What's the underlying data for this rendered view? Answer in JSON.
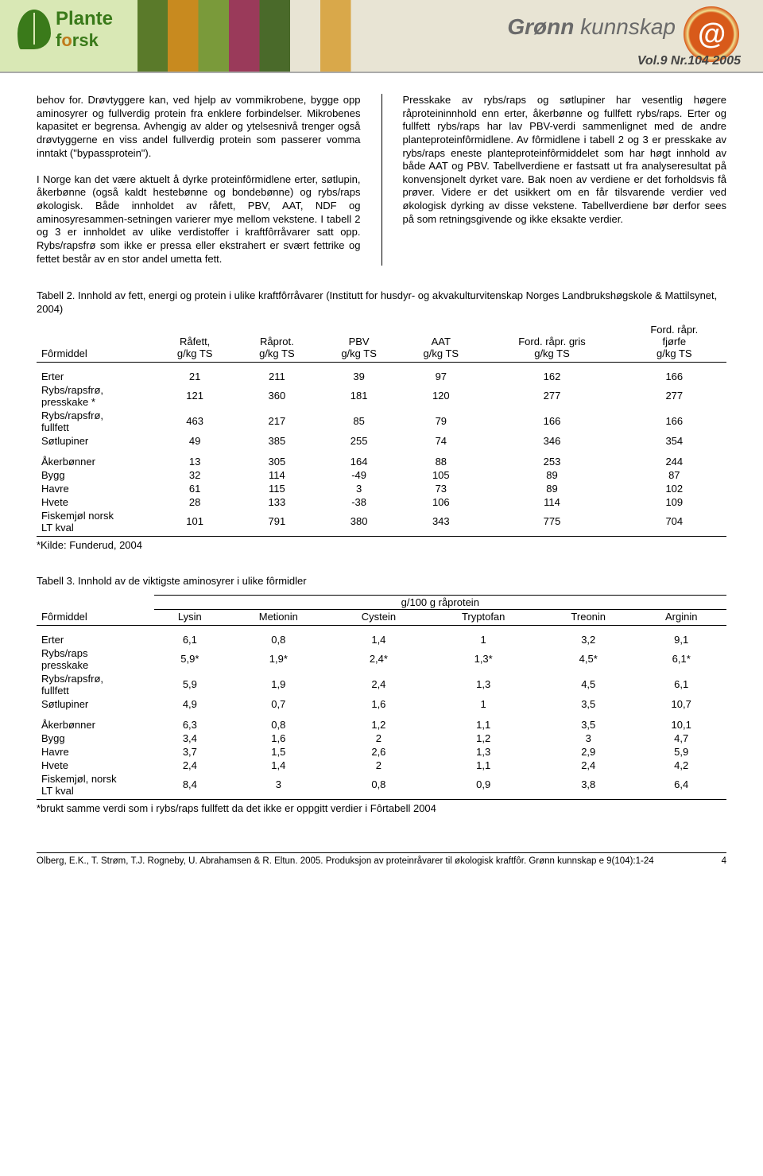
{
  "banner": {
    "brand_line1": "Plante",
    "brand_line2_a": "f",
    "brand_line2_b": "o",
    "brand_line2_c": "rsk",
    "title_a": "Grønn ",
    "title_b": "kunnskap",
    "at": "@",
    "volnr": "Vol.9 Nr.104 2005"
  },
  "body": {
    "left": "behov for. Drøvtyggere kan, ved hjelp av vommikrobene, bygge opp aminosyrer og fullverdig protein fra enklere forbindelser. Mikrobenes kapasitet er begrensa. Avhengig av alder og ytelsesnivå trenger også drøvtyggerne en viss andel fullverdig protein som passerer vomma inntakt (\"bypassprotein\").\n\nI Norge kan det være aktuelt å dyrke proteinfôrmidlene erter, søtlupin, åkerbønne (også kaldt hestebønne og bondebønne) og rybs/raps økologisk. Både innholdet av råfett, PBV, AAT, NDF og aminosyresammen-setningen varierer mye mellom vekstene. I tabell 2 og 3 er innholdet av ulike verdistoffer i kraftfôrråvarer satt opp. Rybs/rapsfrø som ikke er pressa eller ekstrahert er svært fettrike og fettet består av en stor andel umetta fett.",
    "right": "Presskake av rybs/raps og søtlupiner har vesentlig høgere råproteininnhold enn erter, åkerbønne og fullfett rybs/raps. Erter og fullfett rybs/raps har lav PBV-verdi sammenlignet med de andre planteproteinfôrmidlene. Av fôrmidlene i tabell 2 og 3 er presskake av rybs/raps eneste planteproteinfôrmiddelet som har høgt innhold av både AAT og PBV. Tabellverdiene er fastsatt ut fra analyseresultat på konvensjonelt dyrket vare. Bak noen av verdiene er det forholdsvis få prøver. Videre er det usikkert om en får tilsvarende verdier ved økologisk dyrking av disse vekstene. Tabellverdiene bør derfor sees på som retningsgivende og ikke eksakte verdier."
  },
  "t2": {
    "caption": "Tabell 2. Innhold av fett, energi og protein i ulike kraftfôrråvarer (Institutt for husdyr- og akvakulturvitenskap Norges Landbrukshøgskole & Mattilsynet, 2004)",
    "cols": [
      "Fôrmiddel",
      "Råfett,\ng/kg TS",
      "Råprot.\ng/kg TS",
      "PBV\ng/kg TS",
      "AAT\ng/kg TS",
      "Ford. råpr. gris\ng/kg TS",
      "Ford. råpr.\nfjørfe\ng/kg TS"
    ],
    "g1": [
      [
        "Erter",
        "21",
        "211",
        "39",
        "97",
        "162",
        "166"
      ],
      [
        "Rybs/rapsfrø,\npresskake *",
        "121",
        "360",
        "181",
        "120",
        "277",
        "277"
      ],
      [
        "Rybs/rapsfrø,\nfullfett",
        "463",
        "217",
        "85",
        "79",
        "166",
        "166"
      ],
      [
        "Søtlupiner",
        "49",
        "385",
        "255",
        "74",
        "346",
        "354"
      ]
    ],
    "g2": [
      [
        "Åkerbønner",
        "13",
        "305",
        "164",
        "88",
        "253",
        "244"
      ],
      [
        "Bygg",
        "32",
        "114",
        "-49",
        "105",
        "89",
        "87"
      ],
      [
        "Havre",
        "61",
        "115",
        "3",
        "73",
        "89",
        "102"
      ],
      [
        "Hvete",
        "28",
        "133",
        "-38",
        "106",
        "114",
        "109"
      ],
      [
        "Fiskemjøl norsk\nLT kval",
        "101",
        "791",
        "380",
        "343",
        "775",
        "704"
      ]
    ],
    "note": "*Kilde: Funderud, 2004"
  },
  "t3": {
    "caption": "Tabell 3. Innhold av de viktigste aminosyrer i ulike fôrmidler",
    "super": "g/100 g råprotein",
    "cols": [
      "Fôrmiddel",
      "Lysin",
      "Metionin",
      "Cystein",
      "Tryptofan",
      "Treonin",
      "Arginin"
    ],
    "g1": [
      [
        "Erter",
        "6,1",
        "0,8",
        "1,4",
        "1",
        "3,2",
        "9,1"
      ],
      [
        "Rybs/raps\npresskake",
        "5,9*",
        "1,9*",
        "2,4*",
        "1,3*",
        "4,5*",
        "6,1*"
      ],
      [
        "Rybs/rapsfrø,\nfullfett",
        "5,9",
        "1,9",
        "2,4",
        "1,3",
        "4,5",
        "6,1"
      ],
      [
        "Søtlupiner",
        "4,9",
        "0,7",
        "1,6",
        "1",
        "3,5",
        "10,7"
      ]
    ],
    "g2": [
      [
        "Åkerbønner",
        "6,3",
        "0,8",
        "1,2",
        "1,1",
        "3,5",
        "10,1"
      ],
      [
        "Bygg",
        "3,4",
        "1,6",
        "2",
        "1,2",
        "3",
        "4,7"
      ],
      [
        "Havre",
        "3,7",
        "1,5",
        "2,6",
        "1,3",
        "2,9",
        "5,9"
      ],
      [
        "Hvete",
        "2,4",
        "1,4",
        "2",
        "1,1",
        "2,4",
        "4,2"
      ],
      [
        "Fiskemjøl, norsk\nLT kval",
        "8,4",
        "3",
        "0,8",
        "0,9",
        "3,8",
        "6,4"
      ]
    ],
    "note": "*brukt samme verdi som i rybs/raps fullfett da det ikke er oppgitt verdier i Fôrtabell 2004"
  },
  "footer": {
    "cite": "Olberg, E.K., T. Strøm, T.J. Rogneby, U. Abrahamsen & R. Eltun. 2005. Produksjon av proteinråvarer til økologisk kraftfôr. Grønn kunnskap e 9(104):1-24",
    "page": "4"
  }
}
